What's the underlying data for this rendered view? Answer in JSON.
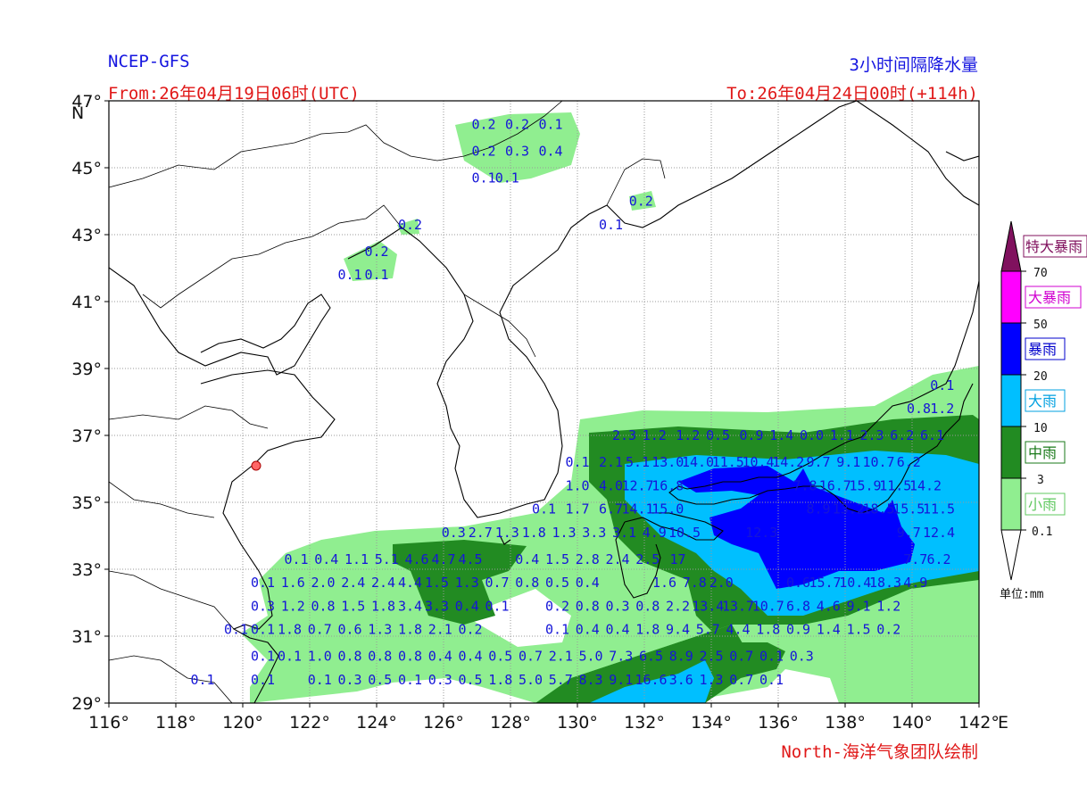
{
  "header": {
    "model": "NCEP-GFS",
    "product": "3小时间隔降水量",
    "from": "From:26年04月19日06时(UTC)",
    "to": "To:26年04月24日00时(+114h)"
  },
  "credit": "North-海洋气象团队绘制",
  "axes": {
    "lat_labels": [
      "47°",
      "45°",
      "43°",
      "41°",
      "39°",
      "37°",
      "35°",
      "33°",
      "31°",
      "29°"
    ],
    "lat_values": [
      47,
      45,
      43,
      41,
      39,
      37,
      35,
      33,
      31,
      29
    ],
    "lat_unit": "N",
    "lon_labels": [
      "116°",
      "118°",
      "120°",
      "122°",
      "124°",
      "126°",
      "128°",
      "130°",
      "132°",
      "134°",
      "136°",
      "138°",
      "140°",
      "142°"
    ],
    "lon_values": [
      116,
      118,
      120,
      122,
      124,
      126,
      128,
      130,
      132,
      134,
      136,
      138,
      140,
      142
    ],
    "lon_unit": "E",
    "lat_range": [
      29,
      47
    ],
    "lon_range": [
      116,
      142
    ],
    "grid": true
  },
  "legend": {
    "unit": "单位:mm",
    "categories": [
      {
        "name": "特大暴雨",
        "color": "#80115e",
        "label_color": "#80115e"
      },
      {
        "name": "大暴雨",
        "color": "#ff00ff",
        "label_color": "#d000d0"
      },
      {
        "name": "暴雨",
        "color": "#0000ff",
        "label_color": "#0000cc"
      },
      {
        "name": "大雨",
        "color": "#00bfff",
        "label_color": "#00a0e0"
      },
      {
        "name": "中雨",
        "color": "#228b22",
        "label_color": "#1a7a1a"
      },
      {
        "name": "小雨",
        "color": "#90ee90",
        "label_color": "#60c860"
      }
    ],
    "thresholds": [
      "70",
      "50",
      "20",
      "10",
      "3",
      "0.1"
    ]
  },
  "values": [
    {
      "lon": 127.2,
      "lat": 46.3,
      "t": "0.2"
    },
    {
      "lon": 128.2,
      "lat": 46.3,
      "t": "0.2"
    },
    {
      "lon": 129.2,
      "lat": 46.3,
      "t": "0.1"
    },
    {
      "lon": 127.2,
      "lat": 45.5,
      "t": "0.2"
    },
    {
      "lon": 128.2,
      "lat": 45.5,
      "t": "0.3"
    },
    {
      "lon": 129.2,
      "lat": 45.5,
      "t": "0.4"
    },
    {
      "lon": 127.2,
      "lat": 44.7,
      "t": "0.1"
    },
    {
      "lon": 127.9,
      "lat": 44.7,
      "t": "0.1"
    },
    {
      "lon": 131.9,
      "lat": 44.0,
      "t": "0.2"
    },
    {
      "lon": 125.0,
      "lat": 43.3,
      "t": "0.2"
    },
    {
      "lon": 131.0,
      "lat": 43.3,
      "t": "0.1"
    },
    {
      "lon": 124.0,
      "lat": 42.5,
      "t": "0.2"
    },
    {
      "lon": 123.2,
      "lat": 41.8,
      "t": "0.1"
    },
    {
      "lon": 124.0,
      "lat": 41.8,
      "t": "0.1"
    },
    {
      "lon": 140.9,
      "lat": 38.5,
      "t": "0.1"
    },
    {
      "lon": 140.2,
      "lat": 37.8,
      "t": "0.8"
    },
    {
      "lon": 140.9,
      "lat": 37.8,
      "t": "1.2"
    },
    {
      "lon": 131.4,
      "lat": 37.0,
      "t": "2.3"
    },
    {
      "lon": 132.3,
      "lat": 37.0,
      "t": "1.2"
    },
    {
      "lon": 133.3,
      "lat": 37.0,
      "t": "1.2"
    },
    {
      "lon": 134.2,
      "lat": 37.0,
      "t": "0.5"
    },
    {
      "lon": 135.2,
      "lat": 37.0,
      "t": "0.9"
    },
    {
      "lon": 136.1,
      "lat": 37.0,
      "t": "1.4"
    },
    {
      "lon": 137.0,
      "lat": 37.0,
      "t": "0.0"
    },
    {
      "lon": 137.9,
      "lat": 37.0,
      "t": "1.1"
    },
    {
      "lon": 138.8,
      "lat": 37.0,
      "t": "2.3"
    },
    {
      "lon": 139.7,
      "lat": 37.0,
      "t": "6.2"
    },
    {
      "lon": 140.6,
      "lat": 37.0,
      "t": "6.1"
    },
    {
      "lon": 130.0,
      "lat": 36.2,
      "t": "0.1"
    },
    {
      "lon": 131.0,
      "lat": 36.2,
      "t": "2.1"
    },
    {
      "lon": 131.8,
      "lat": 36.2,
      "t": "5.1"
    },
    {
      "lon": 132.7,
      "lat": 36.2,
      "t": "13.0"
    },
    {
      "lon": 133.6,
      "lat": 36.2,
      "t": "14.0"
    },
    {
      "lon": 134.5,
      "lat": 36.2,
      "t": "11.5"
    },
    {
      "lon": 135.4,
      "lat": 36.2,
      "t": "10.4"
    },
    {
      "lon": 136.3,
      "lat": 36.2,
      "t": "14.2"
    },
    {
      "lon": 137.2,
      "lat": 36.2,
      "t": "9.7"
    },
    {
      "lon": 138.1,
      "lat": 36.2,
      "t": "9.1"
    },
    {
      "lon": 139.0,
      "lat": 36.2,
      "t": "10.7"
    },
    {
      "lon": 139.9,
      "lat": 36.2,
      "t": "6.2"
    },
    {
      "lon": 130.0,
      "lat": 35.5,
      "t": "1.0"
    },
    {
      "lon": 131.0,
      "lat": 35.5,
      "t": "4.0"
    },
    {
      "lon": 131.8,
      "lat": 35.5,
      "t": "12.7"
    },
    {
      "lon": 132.7,
      "lat": 35.5,
      "t": "16.8"
    },
    {
      "lon": 136.8,
      "lat": 35.5,
      "t": "7.8"
    },
    {
      "lon": 137.7,
      "lat": 35.5,
      "t": "16.7"
    },
    {
      "lon": 138.6,
      "lat": 35.5,
      "t": "15.9"
    },
    {
      "lon": 139.5,
      "lat": 35.5,
      "t": "11.5"
    },
    {
      "lon": 140.4,
      "lat": 35.5,
      "t": "14.2"
    },
    {
      "lon": 129.0,
      "lat": 34.8,
      "t": "0.1"
    },
    {
      "lon": 130.0,
      "lat": 34.8,
      "t": "1.7"
    },
    {
      "lon": 131.0,
      "lat": 34.8,
      "t": "6.7"
    },
    {
      "lon": 131.8,
      "lat": 34.8,
      "t": "14.1"
    },
    {
      "lon": 132.7,
      "lat": 34.8,
      "t": "15.0"
    },
    {
      "lon": 137.2,
      "lat": 34.8,
      "t": "8.9"
    },
    {
      "lon": 138.1,
      "lat": 34.8,
      "t": "13.2"
    },
    {
      "lon": 139.0,
      "lat": 34.8,
      "t": "18.5"
    },
    {
      "lon": 139.9,
      "lat": 34.8,
      "t": "15.5"
    },
    {
      "lon": 140.8,
      "lat": 34.8,
      "t": "11.5"
    },
    {
      "lon": 126.3,
      "lat": 34.1,
      "t": "0.3"
    },
    {
      "lon": 127.1,
      "lat": 34.1,
      "t": "2.7"
    },
    {
      "lon": 127.9,
      "lat": 34.1,
      "t": "1.3"
    },
    {
      "lon": 128.7,
      "lat": 34.1,
      "t": "1.8"
    },
    {
      "lon": 129.6,
      "lat": 34.1,
      "t": "1.3"
    },
    {
      "lon": 130.5,
      "lat": 34.1,
      "t": "3.3"
    },
    {
      "lon": 131.4,
      "lat": 34.1,
      "t": "3.1"
    },
    {
      "lon": 132.3,
      "lat": 34.1,
      "t": "4.9"
    },
    {
      "lon": 133.2,
      "lat": 34.1,
      "t": "10.5"
    },
    {
      "lon": 135.5,
      "lat": 34.1,
      "t": "12.3"
    },
    {
      "lon": 139.9,
      "lat": 34.1,
      "t": "9.7"
    },
    {
      "lon": 140.8,
      "lat": 34.1,
      "t": "12.4"
    },
    {
      "lon": 121.6,
      "lat": 33.3,
      "t": "0.1"
    },
    {
      "lon": 122.5,
      "lat": 33.3,
      "t": "0.4"
    },
    {
      "lon": 123.4,
      "lat": 33.3,
      "t": "1.1"
    },
    {
      "lon": 124.3,
      "lat": 33.3,
      "t": "5.1"
    },
    {
      "lon": 125.2,
      "lat": 33.3,
      "t": "4.6"
    },
    {
      "lon": 126.0,
      "lat": 33.3,
      "t": "4.7"
    },
    {
      "lon": 126.8,
      "lat": 33.3,
      "t": "4.5"
    },
    {
      "lon": 128.5,
      "lat": 33.3,
      "t": "0.4"
    },
    {
      "lon": 129.4,
      "lat": 33.3,
      "t": "1.5"
    },
    {
      "lon": 130.3,
      "lat": 33.3,
      "t": "2.8"
    },
    {
      "lon": 131.2,
      "lat": 33.3,
      "t": "2.4"
    },
    {
      "lon": 132.1,
      "lat": 33.3,
      "t": "2.5"
    },
    {
      "lon": 133.0,
      "lat": 33.3,
      "t": "17"
    },
    {
      "lon": 140.1,
      "lat": 33.3,
      "t": "7.7"
    },
    {
      "lon": 140.8,
      "lat": 33.3,
      "t": "6.2"
    },
    {
      "lon": 120.6,
      "lat": 32.6,
      "t": "0.1"
    },
    {
      "lon": 121.5,
      "lat": 32.6,
      "t": "1.6"
    },
    {
      "lon": 122.4,
      "lat": 32.6,
      "t": "2.0"
    },
    {
      "lon": 123.3,
      "lat": 32.6,
      "t": "2.4"
    },
    {
      "lon": 124.2,
      "lat": 32.6,
      "t": "2.4"
    },
    {
      "lon": 125.0,
      "lat": 32.6,
      "t": "4.4"
    },
    {
      "lon": 125.8,
      "lat": 32.6,
      "t": "1.5"
    },
    {
      "lon": 126.7,
      "lat": 32.6,
      "t": "1.3"
    },
    {
      "lon": 127.6,
      "lat": 32.6,
      "t": "0.7"
    },
    {
      "lon": 128.5,
      "lat": 32.6,
      "t": "0.8"
    },
    {
      "lon": 129.4,
      "lat": 32.6,
      "t": "0.5"
    },
    {
      "lon": 130.3,
      "lat": 32.6,
      "t": "0.4"
    },
    {
      "lon": 132.6,
      "lat": 32.6,
      "t": "1.6"
    },
    {
      "lon": 133.5,
      "lat": 32.6,
      "t": "7.8"
    },
    {
      "lon": 134.3,
      "lat": 32.6,
      "t": "2.0"
    },
    {
      "lon": 136.6,
      "lat": 32.6,
      "t": "0.6"
    },
    {
      "lon": 137.4,
      "lat": 32.6,
      "t": "15.7"
    },
    {
      "lon": 138.3,
      "lat": 32.6,
      "t": "10.4"
    },
    {
      "lon": 139.2,
      "lat": 32.6,
      "t": "18.3"
    },
    {
      "lon": 140.1,
      "lat": 32.6,
      "t": "4.9"
    },
    {
      "lon": 120.6,
      "lat": 31.9,
      "t": "0.3"
    },
    {
      "lon": 121.5,
      "lat": 31.9,
      "t": "1.2"
    },
    {
      "lon": 122.4,
      "lat": 31.9,
      "t": "0.8"
    },
    {
      "lon": 123.3,
      "lat": 31.9,
      "t": "1.5"
    },
    {
      "lon": 124.2,
      "lat": 31.9,
      "t": "1.8"
    },
    {
      "lon": 125.0,
      "lat": 31.9,
      "t": "3.4"
    },
    {
      "lon": 125.8,
      "lat": 31.9,
      "t": "3.3"
    },
    {
      "lon": 126.7,
      "lat": 31.9,
      "t": "0.4"
    },
    {
      "lon": 127.6,
      "lat": 31.9,
      "t": "0.1"
    },
    {
      "lon": 129.4,
      "lat": 31.9,
      "t": "0.2"
    },
    {
      "lon": 130.3,
      "lat": 31.9,
      "t": "0.8"
    },
    {
      "lon": 131.2,
      "lat": 31.9,
      "t": "0.3"
    },
    {
      "lon": 132.1,
      "lat": 31.9,
      "t": "0.8"
    },
    {
      "lon": 133.0,
      "lat": 31.9,
      "t": "2.2"
    },
    {
      "lon": 133.9,
      "lat": 31.9,
      "t": "13.4"
    },
    {
      "lon": 134.8,
      "lat": 31.9,
      "t": "13.7"
    },
    {
      "lon": 135.7,
      "lat": 31.9,
      "t": "10.7"
    },
    {
      "lon": 136.6,
      "lat": 31.9,
      "t": "6.8"
    },
    {
      "lon": 137.5,
      "lat": 31.9,
      "t": "4.6"
    },
    {
      "lon": 138.4,
      "lat": 31.9,
      "t": "9.1"
    },
    {
      "lon": 139.3,
      "lat": 31.9,
      "t": "1.2"
    },
    {
      "lon": 119.8,
      "lat": 31.2,
      "t": "0.1"
    },
    {
      "lon": 120.6,
      "lat": 31.2,
      "t": "0.1"
    },
    {
      "lon": 121.4,
      "lat": 31.2,
      "t": "1.8"
    },
    {
      "lon": 122.3,
      "lat": 31.2,
      "t": "0.7"
    },
    {
      "lon": 123.2,
      "lat": 31.2,
      "t": "0.6"
    },
    {
      "lon": 124.1,
      "lat": 31.2,
      "t": "1.3"
    },
    {
      "lon": 125.0,
      "lat": 31.2,
      "t": "1.8"
    },
    {
      "lon": 125.9,
      "lat": 31.2,
      "t": "2.1"
    },
    {
      "lon": 126.8,
      "lat": 31.2,
      "t": "0.2"
    },
    {
      "lon": 129.4,
      "lat": 31.2,
      "t": "0.1"
    },
    {
      "lon": 130.3,
      "lat": 31.2,
      "t": "0.4"
    },
    {
      "lon": 131.2,
      "lat": 31.2,
      "t": "0.4"
    },
    {
      "lon": 132.1,
      "lat": 31.2,
      "t": "1.8"
    },
    {
      "lon": 133.0,
      "lat": 31.2,
      "t": "9.4"
    },
    {
      "lon": 133.9,
      "lat": 31.2,
      "t": "5.7"
    },
    {
      "lon": 134.8,
      "lat": 31.2,
      "t": "4.4"
    },
    {
      "lon": 135.7,
      "lat": 31.2,
      "t": "1.8"
    },
    {
      "lon": 136.6,
      "lat": 31.2,
      "t": "0.9"
    },
    {
      "lon": 137.5,
      "lat": 31.2,
      "t": "1.4"
    },
    {
      "lon": 138.4,
      "lat": 31.2,
      "t": "1.5"
    },
    {
      "lon": 139.3,
      "lat": 31.2,
      "t": "0.2"
    },
    {
      "lon": 120.6,
      "lat": 30.4,
      "t": "0.1"
    },
    {
      "lon": 121.4,
      "lat": 30.4,
      "t": "0.1"
    },
    {
      "lon": 122.3,
      "lat": 30.4,
      "t": "1.0"
    },
    {
      "lon": 123.2,
      "lat": 30.4,
      "t": "0.8"
    },
    {
      "lon": 124.1,
      "lat": 30.4,
      "t": "0.8"
    },
    {
      "lon": 125.0,
      "lat": 30.4,
      "t": "0.8"
    },
    {
      "lon": 125.9,
      "lat": 30.4,
      "t": "0.4"
    },
    {
      "lon": 126.8,
      "lat": 30.4,
      "t": "0.4"
    },
    {
      "lon": 127.7,
      "lat": 30.4,
      "t": "0.5"
    },
    {
      "lon": 128.6,
      "lat": 30.4,
      "t": "0.7"
    },
    {
      "lon": 129.5,
      "lat": 30.4,
      "t": "2.1"
    },
    {
      "lon": 130.4,
      "lat": 30.4,
      "t": "5.0"
    },
    {
      "lon": 131.3,
      "lat": 30.4,
      "t": "7.3"
    },
    {
      "lon": 132.2,
      "lat": 30.4,
      "t": "6.5"
    },
    {
      "lon": 133.1,
      "lat": 30.4,
      "t": "8.9"
    },
    {
      "lon": 134.0,
      "lat": 30.4,
      "t": "2.5"
    },
    {
      "lon": 134.9,
      "lat": 30.4,
      "t": "0.7"
    },
    {
      "lon": 135.8,
      "lat": 30.4,
      "t": "0.1"
    },
    {
      "lon": 136.7,
      "lat": 30.4,
      "t": "0.3"
    },
    {
      "lon": 118.8,
      "lat": 29.7,
      "t": "0.1"
    },
    {
      "lon": 120.6,
      "lat": 29.7,
      "t": "0.1"
    },
    {
      "lon": 122.3,
      "lat": 29.7,
      "t": "0.1"
    },
    {
      "lon": 123.2,
      "lat": 29.7,
      "t": "0.3"
    },
    {
      "lon": 124.1,
      "lat": 29.7,
      "t": "0.5"
    },
    {
      "lon": 125.0,
      "lat": 29.7,
      "t": "0.1"
    },
    {
      "lon": 125.9,
      "lat": 29.7,
      "t": "0.3"
    },
    {
      "lon": 126.8,
      "lat": 29.7,
      "t": "0.5"
    },
    {
      "lon": 127.7,
      "lat": 29.7,
      "t": "1.8"
    },
    {
      "lon": 128.6,
      "lat": 29.7,
      "t": "5.0"
    },
    {
      "lon": 129.5,
      "lat": 29.7,
      "t": "5.7"
    },
    {
      "lon": 130.4,
      "lat": 29.7,
      "t": "8.3"
    },
    {
      "lon": 131.3,
      "lat": 29.7,
      "t": "9.1"
    },
    {
      "lon": 132.2,
      "lat": 29.7,
      "t": "16.6"
    },
    {
      "lon": 133.1,
      "lat": 29.7,
      "t": "3.6"
    },
    {
      "lon": 134.0,
      "lat": 29.7,
      "t": "1.3"
    },
    {
      "lon": 134.9,
      "lat": 29.7,
      "t": "0.7"
    },
    {
      "lon": 135.8,
      "lat": 29.7,
      "t": "0.1"
    }
  ]
}
